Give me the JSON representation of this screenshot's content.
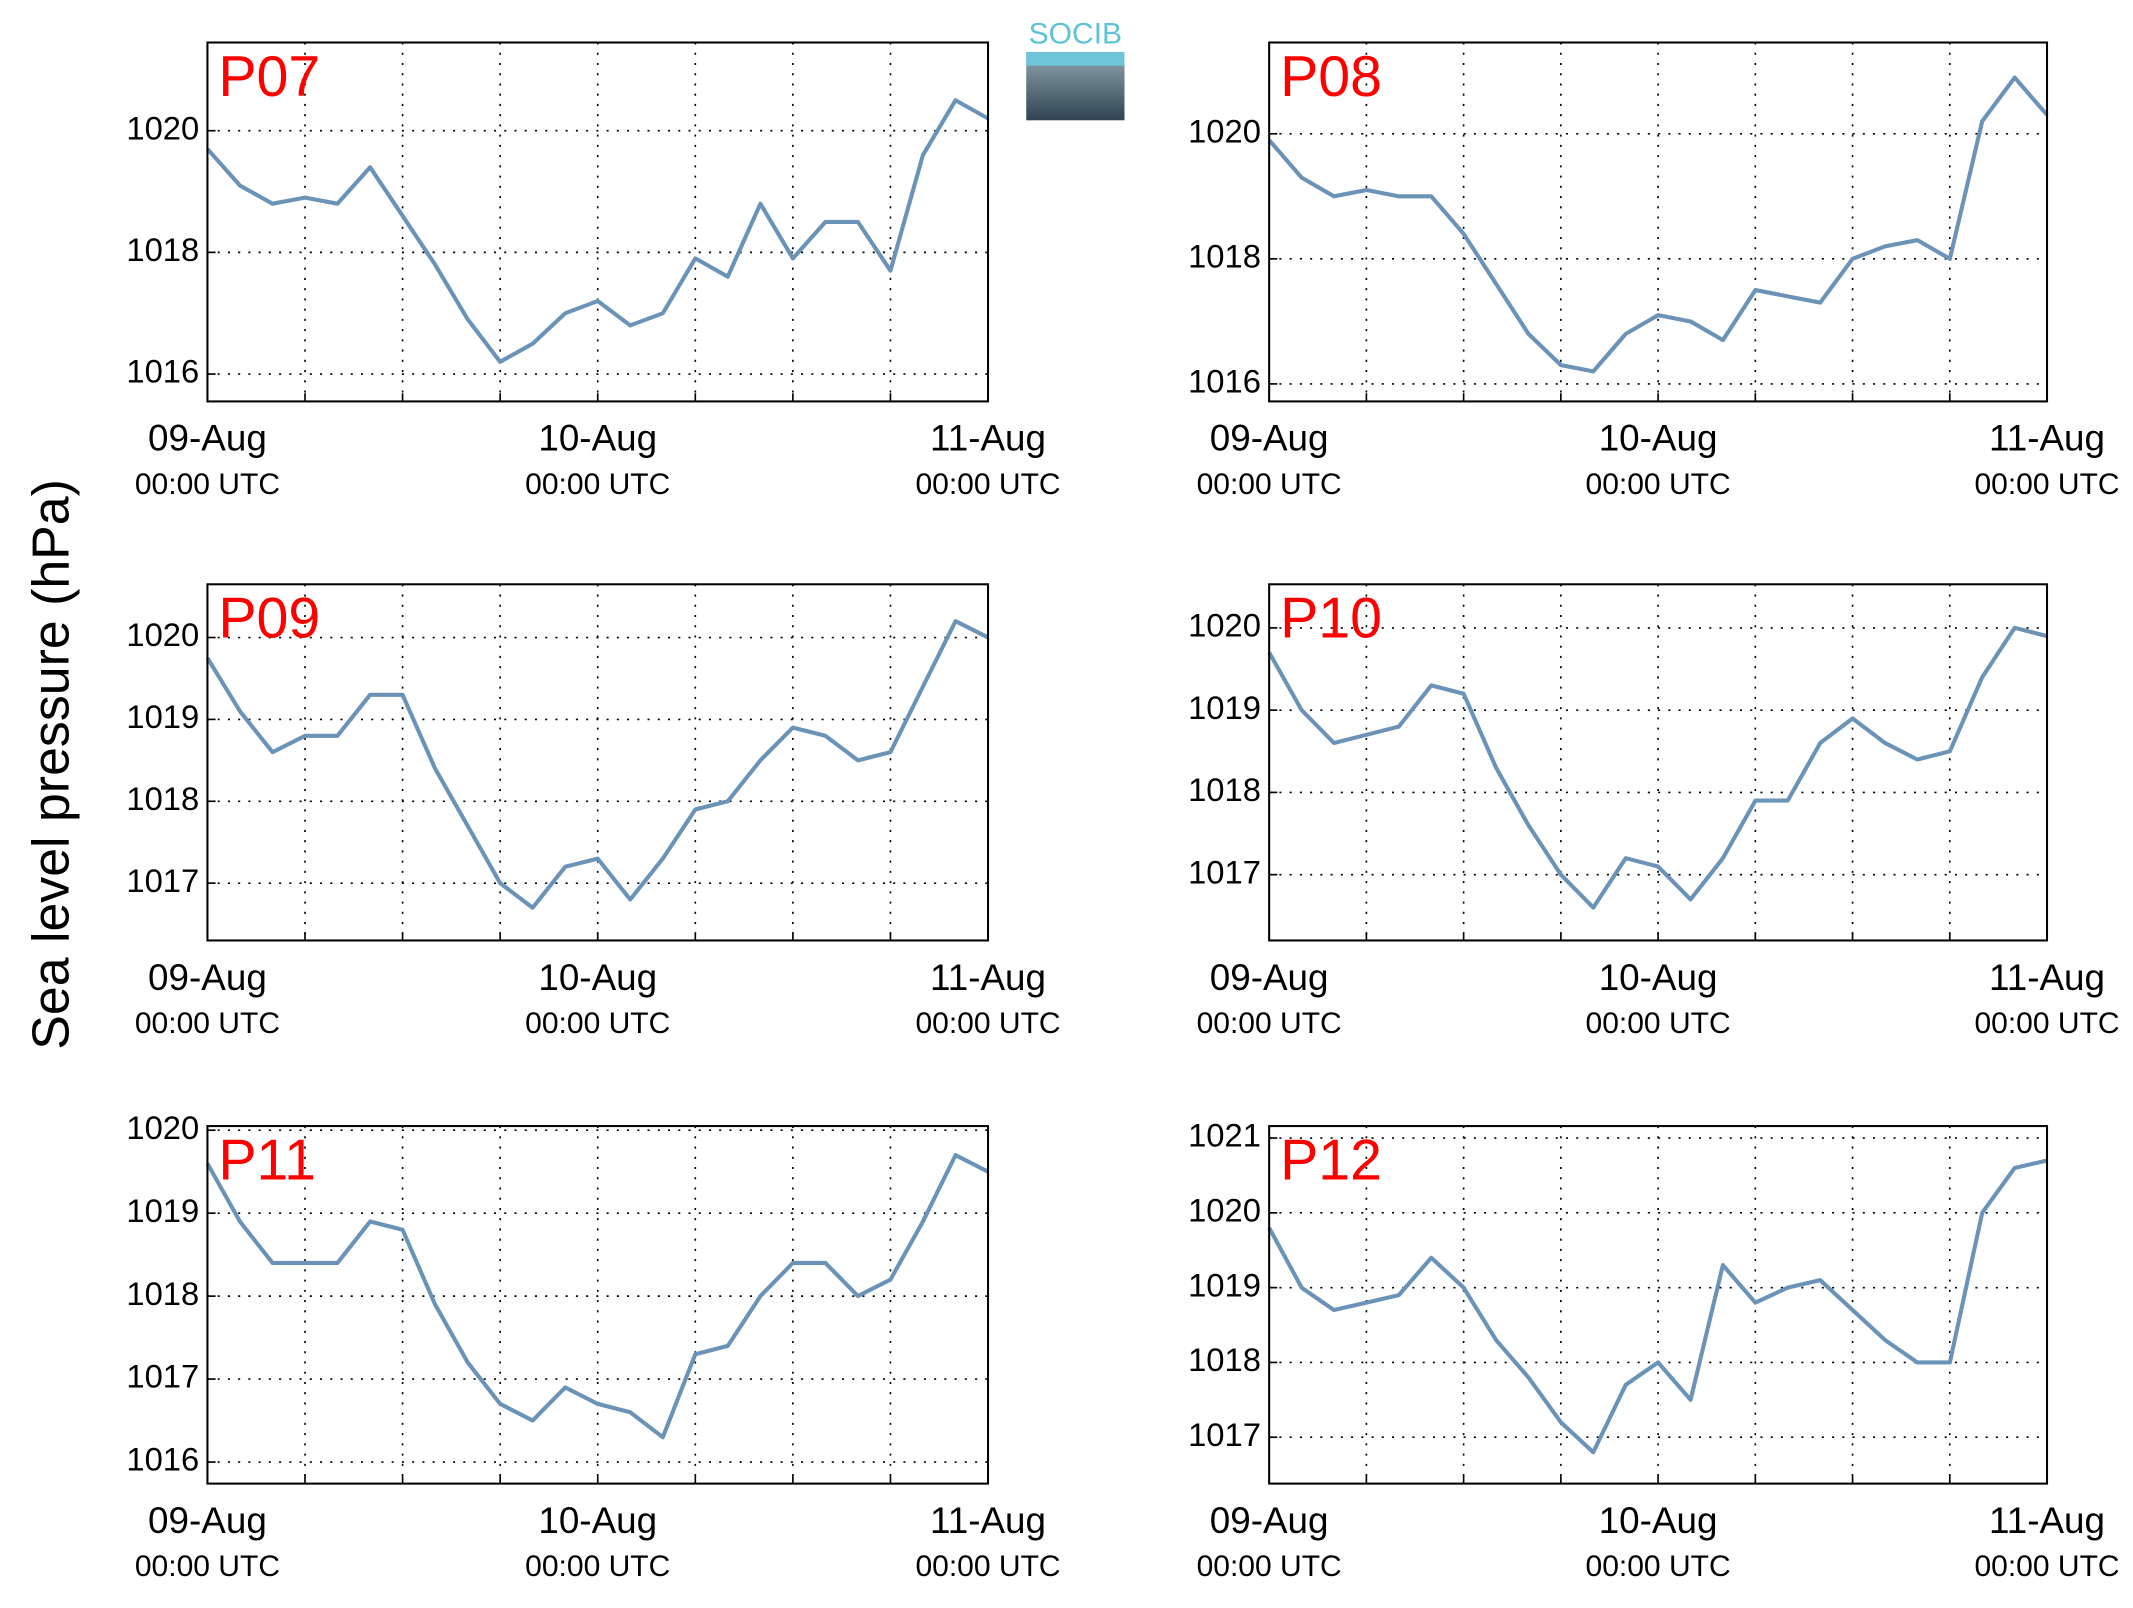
{
  "ylabel": "Sea level pressure (hPa)",
  "logo": "SOCIB",
  "chart_data": [
    {
      "type": "line",
      "title": "P07",
      "title_color": "#ff0000",
      "x": [
        "09-Aug 00:00",
        "09-Aug 02:00",
        "09-Aug 04:00",
        "09-Aug 06:00",
        "09-Aug 08:00",
        "09-Aug 10:00",
        "09-Aug 12:00",
        "09-Aug 14:00",
        "09-Aug 16:00",
        "09-Aug 18:00",
        "09-Aug 20:00",
        "09-Aug 22:00",
        "10-Aug 00:00",
        "10-Aug 02:00",
        "10-Aug 04:00",
        "10-Aug 06:00",
        "10-Aug 08:00",
        "10-Aug 10:00",
        "10-Aug 12:00",
        "10-Aug 14:00",
        "10-Aug 16:00",
        "10-Aug 18:00",
        "10-Aug 20:00",
        "10-Aug 22:00",
        "11-Aug 00:00"
      ],
      "values": [
        1019.7,
        1019.1,
        1018.8,
        1018.9,
        1018.8,
        1019.4,
        1018.6,
        1017.8,
        1016.9,
        1016.2,
        1016.5,
        1017.0,
        1017.2,
        1016.8,
        1017.0,
        1017.9,
        1017.6,
        1018.8,
        1017.9,
        1018.5,
        1018.5,
        1017.7,
        1019.6,
        1020.5,
        1020.2
      ],
      "color": "#6b93b8",
      "xlim": [
        "09-Aug 00:00",
        "11-Aug 00:00"
      ],
      "xticks": [
        {
          "value": "09-Aug 00:00",
          "label": [
            "09-Aug",
            "00:00 UTC"
          ]
        },
        {
          "value": "09-Aug 06:00",
          "label": null
        },
        {
          "value": "09-Aug 12:00",
          "label": null
        },
        {
          "value": "09-Aug 18:00",
          "label": null
        },
        {
          "value": "10-Aug 00:00",
          "label": [
            "10-Aug",
            "00:00 UTC"
          ]
        },
        {
          "value": "10-Aug 06:00",
          "label": null
        },
        {
          "value": "10-Aug 12:00",
          "label": null
        },
        {
          "value": "10-Aug 18:00",
          "label": null
        },
        {
          "value": "11-Aug 00:00",
          "label": [
            "11-Aug",
            "00:00 UTC"
          ]
        }
      ],
      "ylim": [
        1015.55,
        1021.45
      ],
      "yticks": [
        1016,
        1018,
        1020
      ],
      "grid": true
    },
    {
      "type": "line",
      "title": "P08",
      "title_color": "#ff0000",
      "x": [
        "09-Aug 00:00",
        "09-Aug 02:00",
        "09-Aug 04:00",
        "09-Aug 06:00",
        "09-Aug 08:00",
        "09-Aug 10:00",
        "09-Aug 12:00",
        "09-Aug 14:00",
        "09-Aug 16:00",
        "09-Aug 18:00",
        "09-Aug 20:00",
        "09-Aug 22:00",
        "10-Aug 00:00",
        "10-Aug 02:00",
        "10-Aug 04:00",
        "10-Aug 06:00",
        "10-Aug 08:00",
        "10-Aug 10:00",
        "10-Aug 12:00",
        "10-Aug 14:00",
        "10-Aug 16:00",
        "10-Aug 18:00",
        "10-Aug 20:00",
        "10-Aug 22:00",
        "11-Aug 00:00"
      ],
      "values": [
        1019.9,
        1019.3,
        1019.0,
        1019.1,
        1019.0,
        1019.0,
        1018.4,
        1017.6,
        1016.8,
        1016.3,
        1016.2,
        1016.8,
        1017.1,
        1017.0,
        1016.7,
        1017.5,
        1017.4,
        1017.3,
        1018.0,
        1018.2,
        1018.3,
        1018.0,
        1020.2,
        1020.9,
        1020.3
      ],
      "color": "#6b93b8",
      "xlim": [
        "09-Aug 00:00",
        "11-Aug 00:00"
      ],
      "xticks": [
        {
          "value": "09-Aug 00:00",
          "label": [
            "09-Aug",
            "00:00 UTC"
          ]
        },
        {
          "value": "09-Aug 06:00",
          "label": null
        },
        {
          "value": "09-Aug 12:00",
          "label": null
        },
        {
          "value": "09-Aug 18:00",
          "label": null
        },
        {
          "value": "10-Aug 00:00",
          "label": [
            "10-Aug",
            "00:00 UTC"
          ]
        },
        {
          "value": "10-Aug 06:00",
          "label": null
        },
        {
          "value": "10-Aug 12:00",
          "label": null
        },
        {
          "value": "10-Aug 18:00",
          "label": null
        },
        {
          "value": "11-Aug 00:00",
          "label": [
            "11-Aug",
            "00:00 UTC"
          ]
        }
      ],
      "ylim": [
        1015.72,
        1021.46
      ],
      "yticks": [
        1016,
        1018,
        1020
      ],
      "grid": true
    },
    {
      "type": "line",
      "title": "P09",
      "title_color": "#ff0000",
      "x": [
        "09-Aug 00:00",
        "09-Aug 02:00",
        "09-Aug 04:00",
        "09-Aug 06:00",
        "09-Aug 08:00",
        "09-Aug 10:00",
        "09-Aug 12:00",
        "09-Aug 14:00",
        "09-Aug 16:00",
        "09-Aug 18:00",
        "09-Aug 20:00",
        "09-Aug 22:00",
        "10-Aug 00:00",
        "10-Aug 02:00",
        "10-Aug 04:00",
        "10-Aug 06:00",
        "10-Aug 08:00",
        "10-Aug 10:00",
        "10-Aug 12:00",
        "10-Aug 14:00",
        "10-Aug 16:00",
        "10-Aug 18:00",
        "10-Aug 20:00",
        "10-Aug 22:00",
        "11-Aug 00:00"
      ],
      "values": [
        1019.75,
        1019.1,
        1018.6,
        1018.8,
        1018.8,
        1019.3,
        1019.3,
        1018.4,
        1017.7,
        1017.0,
        1016.7,
        1017.2,
        1017.3,
        1016.8,
        1017.3,
        1017.9,
        1018.0,
        1018.5,
        1018.9,
        1018.8,
        1018.5,
        1018.6,
        1019.4,
        1020.2,
        1020.0
      ],
      "color": "#6b93b8",
      "xlim": [
        "09-Aug 00:00",
        "11-Aug 00:00"
      ],
      "xticks": [
        {
          "value": "09-Aug 00:00",
          "label": [
            "09-Aug",
            "00:00 UTC"
          ]
        },
        {
          "value": "09-Aug 06:00",
          "label": null
        },
        {
          "value": "09-Aug 12:00",
          "label": null
        },
        {
          "value": "09-Aug 18:00",
          "label": null
        },
        {
          "value": "10-Aug 00:00",
          "label": [
            "10-Aug",
            "00:00 UTC"
          ]
        },
        {
          "value": "10-Aug 06:00",
          "label": null
        },
        {
          "value": "10-Aug 12:00",
          "label": null
        },
        {
          "value": "10-Aug 18:00",
          "label": null
        },
        {
          "value": "11-Aug 00:00",
          "label": [
            "11-Aug",
            "00:00 UTC"
          ]
        }
      ],
      "ylim": [
        1016.3,
        1020.65
      ],
      "yticks": [
        1017,
        1018,
        1019,
        1020
      ],
      "grid": true
    },
    {
      "type": "line",
      "title": "P10",
      "title_color": "#ff0000",
      "x": [
        "09-Aug 00:00",
        "09-Aug 02:00",
        "09-Aug 04:00",
        "09-Aug 06:00",
        "09-Aug 08:00",
        "09-Aug 10:00",
        "09-Aug 12:00",
        "09-Aug 14:00",
        "09-Aug 16:00",
        "09-Aug 18:00",
        "09-Aug 20:00",
        "09-Aug 22:00",
        "10-Aug 00:00",
        "10-Aug 02:00",
        "10-Aug 04:00",
        "10-Aug 06:00",
        "10-Aug 08:00",
        "10-Aug 10:00",
        "10-Aug 12:00",
        "10-Aug 14:00",
        "10-Aug 16:00",
        "10-Aug 18:00",
        "10-Aug 20:00",
        "10-Aug 22:00",
        "11-Aug 00:00"
      ],
      "values": [
        1019.7,
        1019.0,
        1018.6,
        1018.7,
        1018.8,
        1019.3,
        1019.2,
        1018.3,
        1017.6,
        1017.0,
        1016.6,
        1017.2,
        1017.1,
        1016.7,
        1017.2,
        1017.9,
        1017.9,
        1018.6,
        1018.9,
        1018.6,
        1018.4,
        1018.5,
        1019.4,
        1020.0,
        1019.9
      ],
      "color": "#6b93b8",
      "xlim": [
        "09-Aug 00:00",
        "11-Aug 00:00"
      ],
      "xticks": [
        {
          "value": "09-Aug 00:00",
          "label": [
            "09-Aug",
            "00:00 UTC"
          ]
        },
        {
          "value": "09-Aug 06:00",
          "label": null
        },
        {
          "value": "09-Aug 12:00",
          "label": null
        },
        {
          "value": "09-Aug 18:00",
          "label": null
        },
        {
          "value": "10-Aug 00:00",
          "label": [
            "10-Aug",
            "00:00 UTC"
          ]
        },
        {
          "value": "10-Aug 06:00",
          "label": null
        },
        {
          "value": "10-Aug 12:00",
          "label": null
        },
        {
          "value": "10-Aug 18:00",
          "label": null
        },
        {
          "value": "11-Aug 00:00",
          "label": [
            "11-Aug",
            "00:00 UTC"
          ]
        }
      ],
      "ylim": [
        1016.2,
        1020.53
      ],
      "yticks": [
        1017,
        1018,
        1019,
        1020
      ],
      "grid": true
    },
    {
      "type": "line",
      "title": "P11",
      "title_color": "#ff0000",
      "x": [
        "09-Aug 00:00",
        "09-Aug 02:00",
        "09-Aug 04:00",
        "09-Aug 06:00",
        "09-Aug 08:00",
        "09-Aug 10:00",
        "09-Aug 12:00",
        "09-Aug 14:00",
        "09-Aug 16:00",
        "09-Aug 18:00",
        "09-Aug 20:00",
        "09-Aug 22:00",
        "10-Aug 00:00",
        "10-Aug 02:00",
        "10-Aug 04:00",
        "10-Aug 06:00",
        "10-Aug 08:00",
        "10-Aug 10:00",
        "10-Aug 12:00",
        "10-Aug 14:00",
        "10-Aug 16:00",
        "10-Aug 18:00",
        "10-Aug 20:00",
        "10-Aug 22:00",
        "11-Aug 00:00"
      ],
      "values": [
        1019.6,
        1018.9,
        1018.4,
        1018.4,
        1018.4,
        1018.9,
        1018.8,
        1017.9,
        1017.2,
        1016.7,
        1016.5,
        1016.9,
        1016.7,
        1016.6,
        1016.3,
        1017.3,
        1017.4,
        1018.0,
        1018.4,
        1018.4,
        1018.0,
        1018.2,
        1018.9,
        1019.7,
        1019.5
      ],
      "color": "#6b93b8",
      "xlim": [
        "09-Aug 00:00",
        "11-Aug 00:00"
      ],
      "xticks": [
        {
          "value": "09-Aug 00:00",
          "label": [
            "09-Aug",
            "00:00 UTC"
          ]
        },
        {
          "value": "09-Aug 06:00",
          "label": null
        },
        {
          "value": "09-Aug 12:00",
          "label": null
        },
        {
          "value": "09-Aug 18:00",
          "label": null
        },
        {
          "value": "10-Aug 00:00",
          "label": [
            "10-Aug",
            "00:00 UTC"
          ]
        },
        {
          "value": "10-Aug 06:00",
          "label": null
        },
        {
          "value": "10-Aug 12:00",
          "label": null
        },
        {
          "value": "10-Aug 18:00",
          "label": null
        },
        {
          "value": "11-Aug 00:00",
          "label": [
            "11-Aug",
            "00:00 UTC"
          ]
        }
      ],
      "ylim": [
        1015.74,
        1020.05
      ],
      "yticks": [
        1016,
        1017,
        1018,
        1019,
        1020
      ],
      "grid": true
    },
    {
      "type": "line",
      "title": "P12",
      "title_color": "#ff0000",
      "x": [
        "09-Aug 00:00",
        "09-Aug 02:00",
        "09-Aug 04:00",
        "09-Aug 06:00",
        "09-Aug 08:00",
        "09-Aug 10:00",
        "09-Aug 12:00",
        "09-Aug 14:00",
        "09-Aug 16:00",
        "09-Aug 18:00",
        "09-Aug 20:00",
        "09-Aug 22:00",
        "10-Aug 00:00",
        "10-Aug 02:00",
        "10-Aug 04:00",
        "10-Aug 06:00",
        "10-Aug 08:00",
        "10-Aug 10:00",
        "10-Aug 12:00",
        "10-Aug 14:00",
        "10-Aug 16:00",
        "10-Aug 18:00",
        "10-Aug 20:00",
        "10-Aug 22:00",
        "11-Aug 00:00"
      ],
      "values": [
        1019.8,
        1019.0,
        1018.7,
        1018.8,
        1018.9,
        1019.4,
        1019.0,
        1018.3,
        1017.8,
        1017.2,
        1016.8,
        1017.7,
        1018.0,
        1017.5,
        1019.3,
        1018.8,
        1019.0,
        1019.1,
        1018.7,
        1018.3,
        1018.0,
        1018.0,
        1020.0,
        1020.6,
        1020.7
      ],
      "color": "#6b93b8",
      "xlim": [
        "09-Aug 00:00",
        "11-Aug 00:00"
      ],
      "xticks": [
        {
          "value": "09-Aug 00:00",
          "label": [
            "09-Aug",
            "00:00 UTC"
          ]
        },
        {
          "value": "09-Aug 06:00",
          "label": null
        },
        {
          "value": "09-Aug 12:00",
          "label": null
        },
        {
          "value": "09-Aug 18:00",
          "label": null
        },
        {
          "value": "10-Aug 00:00",
          "label": [
            "10-Aug",
            "00:00 UTC"
          ]
        },
        {
          "value": "10-Aug 06:00",
          "label": null
        },
        {
          "value": "10-Aug 12:00",
          "label": null
        },
        {
          "value": "10-Aug 18:00",
          "label": null
        },
        {
          "value": "11-Aug 00:00",
          "label": [
            "11-Aug",
            "00:00 UTC"
          ]
        }
      ],
      "ylim": [
        1016.38,
        1021.16
      ],
      "yticks": [
        1017,
        1018,
        1019,
        1020,
        1021
      ],
      "grid": true
    }
  ]
}
